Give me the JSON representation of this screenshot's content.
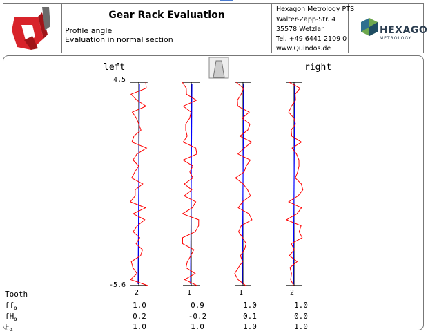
{
  "header": {
    "title": "Gear Rack Evaluation",
    "subtitle_1": "Profile angle",
    "subtitle_2": "Evaluation in normal section",
    "address": [
      "Hexagon Metrology PTS",
      "Walter-Zapp-Str. 4",
      "35578 Wetzlar",
      "Tel. +49 6441 2109 0",
      "www.Quindos.de"
    ],
    "brand": "HEXAGON",
    "brand_sub": "METROLOGY"
  },
  "chart": {
    "left_label": "left",
    "right_label": "right",
    "scale_top": "4.5",
    "scale_bottom": "-5.6",
    "tooth_numbers": [
      "2",
      "1",
      "1",
      "2"
    ]
  },
  "table": {
    "row_labels": {
      "tooth": "Tooth",
      "ff": "ff",
      "ff_sub": "α",
      "fh": "fH",
      "fh_sub": "α",
      "f": "F",
      "f_sub": "α"
    },
    "columns": [
      {
        "ff": "1.0",
        "fh": "0.2",
        "f": "1.0"
      },
      {
        "ff": "0.9",
        "fh": "-0.2",
        "f": "1.0"
      },
      {
        "ff": "1.0",
        "fh": "0.1",
        "f": "1.0"
      },
      {
        "ff": "1.0",
        "fh": "0.0",
        "f": "1.0"
      }
    ]
  },
  "colors": {
    "measured": "#ff0000",
    "nominal": "#0000ff",
    "axis": "#000000",
    "logo": "#d8232a"
  }
}
